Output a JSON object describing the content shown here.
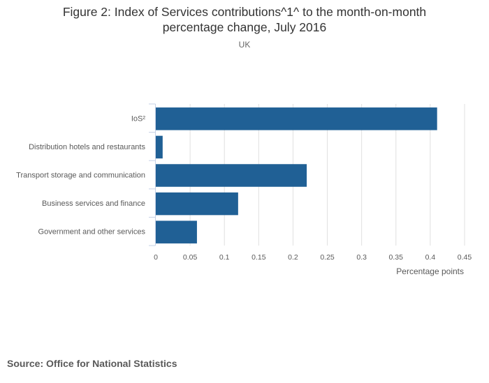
{
  "chart_data": {
    "type": "bar",
    "orientation": "horizontal",
    "title": "Figure 2: Index of Services contributions^1^ to the month-on-month percentage change, July 2016",
    "title_lines": [
      "Figure 2: Index of Services contributions^1^ to the month-on-month",
      "percentage change, July 2016"
    ],
    "subtitle": "UK",
    "categories": [
      "IoS²",
      "Distribution hotels and restaurants",
      "Transport storage and communication",
      "Business services and finance",
      "Government and other services"
    ],
    "values": [
      0.41,
      0.01,
      0.22,
      0.12,
      0.06
    ],
    "xlabel": "Percentage points",
    "ylabel": "",
    "xlim": [
      0,
      0.45
    ],
    "xticks": [
      0,
      0.05,
      0.1,
      0.15,
      0.2,
      0.25,
      0.3,
      0.35,
      0.4,
      0.45
    ],
    "xtick_labels": [
      "0",
      "0.05",
      "0.1",
      "0.15",
      "0.2",
      "0.25",
      "0.3",
      "0.35",
      "0.4",
      "0.45"
    ],
    "grid": true,
    "bar_color": "#206095",
    "legend": "none"
  },
  "source": "Source: Office for National Statistics"
}
